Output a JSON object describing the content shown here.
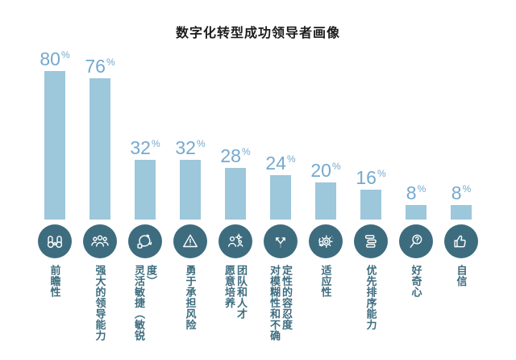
{
  "title": "数字化转型成功领导者画像",
  "colors": {
    "background": "#ffffff",
    "title_text": "#1c1c1c",
    "bar": "#9dc7db",
    "value_text": "#74a9ce",
    "icon_circle": "#3d6c7f",
    "label_text": "#3d6c7f"
  },
  "chart_data": {
    "type": "bar",
    "title": "数字化转型成功领导者画像",
    "unit": "%",
    "ylim": [
      0,
      100
    ],
    "grid": false,
    "legend": "none",
    "value_labels_position": "above-bars",
    "category_labels_orientation": "vertical",
    "categories": [
      "前瞻性",
      "强大的领导能力",
      "灵活敏捷（敏锐度）",
      "勇于承担风险",
      "愿意培养\n团队和人才",
      "对模糊性和不确\n定性的容忍度",
      "适应性",
      "优先排序能力",
      "好奇心",
      "自信"
    ],
    "values": [
      80,
      76,
      32,
      32,
      28,
      24,
      20,
      16,
      8,
      8
    ],
    "bars": [
      {
        "label": "前瞻性",
        "value": 80,
        "display": "80%",
        "icon": "binoculars-icon"
      },
      {
        "label": "强大的领导能力",
        "value": 76,
        "display": "76%",
        "icon": "team-icon"
      },
      {
        "label": "灵活敏捷（敏锐度）",
        "value": 32,
        "display": "32%",
        "icon": "agile-loop-icon"
      },
      {
        "label": "勇于承担风险",
        "value": 32,
        "display": "32%",
        "icon": "risk-triangle-icon"
      },
      {
        "label": "愿意培养\n团队和人才",
        "value": 28,
        "display": "28%",
        "icon": "talent-development-icon"
      },
      {
        "label": "对模糊性和不确\n定性的容忍度",
        "value": 24,
        "display": "24%",
        "icon": "branching-arrows-icon"
      },
      {
        "label": "适应性",
        "value": 20,
        "display": "20%",
        "icon": "gear-rotation-icon"
      },
      {
        "label": "优先排序能力",
        "value": 16,
        "display": "16%",
        "icon": "stacked-layers-icon"
      },
      {
        "label": "好奇心",
        "value": 8,
        "display": "8%",
        "icon": "magnifier-question-icon"
      },
      {
        "label": "自信",
        "value": 8,
        "display": "8%",
        "icon": "thumbs-up-icon"
      }
    ]
  }
}
